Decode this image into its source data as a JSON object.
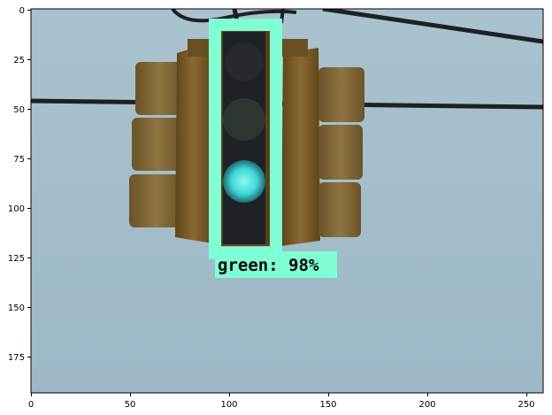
{
  "detection": {
    "label": "green: 98%",
    "box_color": "#7fffd4"
  },
  "axes": {
    "x_ticks": [
      "0",
      "50",
      "100",
      "150",
      "200",
      "250"
    ],
    "y_ticks": [
      "0",
      "25",
      "50",
      "75",
      "100",
      "125",
      "150",
      "175"
    ]
  },
  "scene": {
    "sky_color": "#a4bfcc",
    "signal_housing_color": "#7a5a26",
    "lit_lamp_color": "#4fe0e0"
  }
}
